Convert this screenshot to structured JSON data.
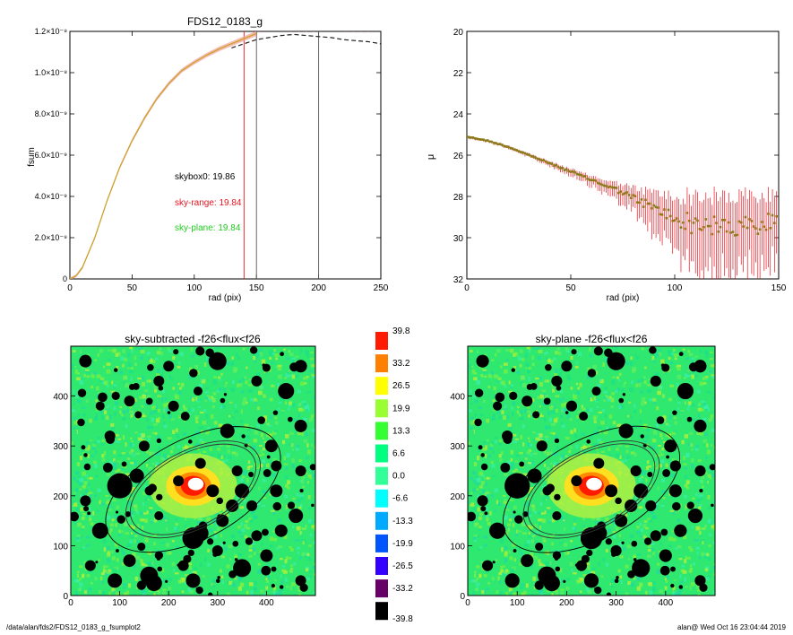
{
  "footer": {
    "path": "/data/alan/fds2/FDS12_0183_g_fsumplot2",
    "stamp": "alan@  Wed Oct 16 23:04:44 2019"
  },
  "chart_data": [
    {
      "type": "line",
      "title": "FDS12_0183_g",
      "xlabel": "rad (pix)",
      "ylabel": "fsum",
      "xlim": [
        0,
        250
      ],
      "ylim": [
        0,
        1.2e-08
      ],
      "xticks": [
        "0",
        "50",
        "100",
        "150",
        "200",
        "250"
      ],
      "yticks": [
        "0",
        "2.0×10⁻⁹",
        "4.0×10⁻⁹",
        "6.0×10⁻⁹",
        "8.0×10⁻⁹",
        "1.0×10⁻⁸",
        "1.2×10⁻⁸"
      ],
      "ytick_values": [
        0,
        2e-09,
        4e-09,
        6e-09,
        8e-09,
        1e-08,
        1.2e-08
      ],
      "annotations": [
        {
          "text": "skybox0: 19.86",
          "color": "#000000"
        },
        {
          "text": "sky-range: 19.84",
          "color": "#e8141e"
        },
        {
          "text": "sky-plane: 19.84",
          "color": "#22cc22"
        }
      ],
      "vlines": [
        {
          "x": 140,
          "color": "#e8141e"
        },
        {
          "x": 150,
          "color": "#555555"
        },
        {
          "x": 200,
          "color": "#555555"
        }
      ],
      "series": [
        {
          "color": "#c9a227",
          "x": [
            0,
            5,
            10,
            20,
            30,
            40,
            50,
            60,
            70,
            80,
            90,
            100,
            110,
            120,
            130,
            140,
            150
          ],
          "y": [
            0,
            1.5e-10,
            5.5e-10,
            2e-09,
            3.8e-09,
            5.4e-09,
            6.7e-09,
            7.8e-09,
            8.75e-09,
            9.5e-09,
            1.01e-08,
            1.05e-08,
            1.085e-08,
            1.115e-08,
            1.14e-08,
            1.165e-08,
            1.19e-08
          ]
        },
        {
          "color": "#222222",
          "dash": "5,3",
          "x": [
            130,
            140,
            150,
            160,
            170,
            180,
            190,
            200,
            210,
            220,
            230,
            240,
            250
          ],
          "y": [
            1.12e-08,
            1.14e-08,
            1.16e-08,
            1.17e-08,
            1.18e-08,
            1.185e-08,
            1.18e-08,
            1.175e-08,
            1.17e-08,
            1.16e-08,
            1.155e-08,
            1.15e-08,
            1.14e-08
          ]
        }
      ]
    },
    {
      "type": "scatter",
      "xlabel": "rad (pix)",
      "ylabel": "μ",
      "xlim": [
        0,
        150
      ],
      "ylim": [
        32,
        20
      ],
      "xticks": [
        "0",
        "50",
        "100",
        "150"
      ],
      "yticks": [
        "20",
        "22",
        "24",
        "26",
        "28",
        "30",
        "32"
      ],
      "ytick_values": [
        20,
        22,
        24,
        26,
        28,
        30,
        32
      ],
      "series": [
        {
          "color": "#8b7a1a",
          "error_color": "#e8141e",
          "x": [
            0,
            5,
            10,
            15,
            20,
            25,
            30,
            35,
            40,
            45,
            50,
            55,
            60,
            65,
            70,
            75,
            80,
            85,
            90,
            95,
            100,
            105,
            110,
            115,
            120,
            125,
            130,
            135,
            140,
            145,
            150
          ],
          "y": [
            25.1,
            25.2,
            25.3,
            25.45,
            25.6,
            25.8,
            26.0,
            26.2,
            26.4,
            26.6,
            26.8,
            27.0,
            27.2,
            27.4,
            27.6,
            27.8,
            28.1,
            28.3,
            28.6,
            28.8,
            29.1,
            29.2,
            29.4,
            29.3,
            29.5,
            29.4,
            29.6,
            29.4,
            29.5,
            29.3,
            29.0
          ],
          "err": [
            0.05,
            0.05,
            0.05,
            0.06,
            0.06,
            0.07,
            0.08,
            0.09,
            0.1,
            0.12,
            0.14,
            0.16,
            0.2,
            0.25,
            0.3,
            0.4,
            0.5,
            0.6,
            0.8,
            0.9,
            1.0,
            1.2,
            1.4,
            1.3,
            1.5,
            1.4,
            1.6,
            1.4,
            1.5,
            1.3,
            1.2
          ]
        }
      ]
    },
    {
      "type": "heatmap",
      "title": "sky-subtracted -f26<flux<f26",
      "xlim": [
        0,
        500
      ],
      "ylim": [
        0,
        500
      ],
      "xticks": [
        "0",
        "100",
        "200",
        "300",
        "400"
      ],
      "yticks": [
        "0",
        "100",
        "200",
        "300",
        "400"
      ]
    },
    {
      "type": "heatmap",
      "title": "sky-plane -f26<flux<f26",
      "xlim": [
        0,
        500
      ],
      "ylim": [
        0,
        500
      ],
      "xticks": [
        "0",
        "100",
        "200",
        "300",
        "400"
      ],
      "yticks": [
        "0",
        "100",
        "200",
        "300",
        "400"
      ]
    },
    {
      "type": "table",
      "labels": [
        "39.8",
        "33.2",
        "26.5",
        "19.9",
        "13.3",
        "6.6",
        "0.0",
        "-6.6",
        "-13.3",
        "-19.9",
        "-26.5",
        "-33.2",
        "-39.8"
      ],
      "colors": [
        "#ff1a00",
        "#ff8000",
        "#ffff00",
        "#99ff33",
        "#33ff33",
        "#00ff80",
        "#33ff99",
        "#00ffff",
        "#00aaff",
        "#0055ff",
        "#3300ff",
        "#660066",
        "#000000"
      ]
    }
  ]
}
